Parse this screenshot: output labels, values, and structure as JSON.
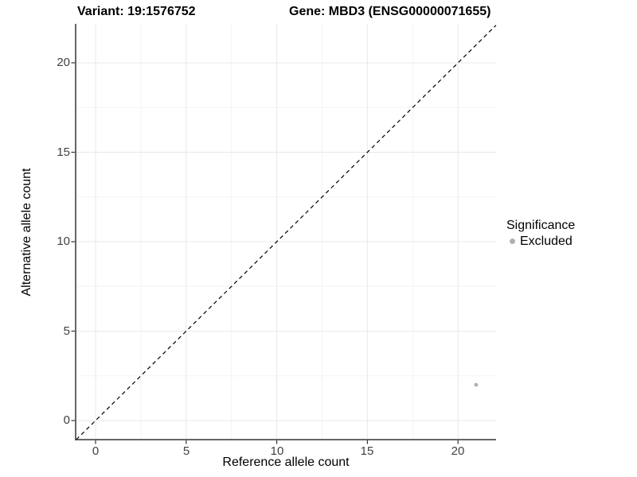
{
  "header": {
    "variant_title": "Variant: 19:1576752",
    "gene_title": "Gene: MBD3 (ENSG00000071655)"
  },
  "legend": {
    "title": "Significance",
    "items": [
      {
        "label": "Excluded",
        "color": "#b0b0b0"
      }
    ]
  },
  "chart_data": {
    "type": "scatter",
    "title": "Variant: 19:1576752 — Gene: MBD3 (ENSG00000071655)",
    "xlabel": "Reference allele count",
    "ylabel": "Alternative allele count",
    "x_ticks": [
      0,
      5,
      10,
      15,
      20
    ],
    "y_ticks": [
      0,
      5,
      10,
      15,
      20
    ],
    "x_tick_labels": [
      "0",
      "5",
      "10",
      "15",
      "20"
    ],
    "y_tick_labels": [
      "0",
      "5",
      "10",
      "15",
      "20"
    ],
    "x_minor_gridlines": [
      2.5,
      7.5,
      12.5,
      17.5,
      22.5
    ],
    "y_minor_gridlines": [
      2.5,
      7.5,
      12.5,
      17.5
    ],
    "xlim": [
      -1.1,
      22.1
    ],
    "ylim": [
      -1.07,
      22.2
    ],
    "grid": "major+minor",
    "legend_position": "right",
    "series": [
      {
        "name": "Excluded",
        "color": "#b0b0b0",
        "points": [
          {
            "x": 21,
            "y": 2
          }
        ]
      }
    ],
    "reference_line": {
      "type": "identity y = x",
      "style": "dashed",
      "color": "#000000"
    },
    "colors": {
      "background": "#ffffff",
      "grid_major": "#e8e8e8",
      "grid_minor": "#f4f4f4",
      "axis": "#333333",
      "tick_text": "#404040",
      "reference_line": "#000000"
    }
  }
}
